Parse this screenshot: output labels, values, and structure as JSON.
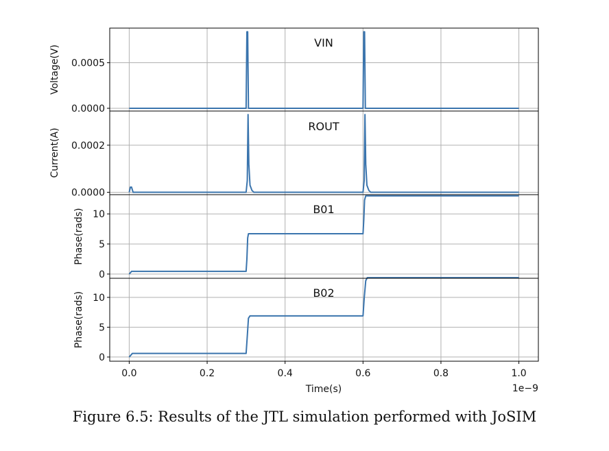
{
  "caption": "Figure 6.5: Results of the JTL simulation performed with JoSIM",
  "xlabel": "Time(s)",
  "x_offset_label": "1e−9",
  "x_ticks": [
    0.0,
    0.2,
    0.4,
    0.6,
    0.8,
    1.0
  ],
  "x_tick_labels": [
    "0.0",
    "0.2",
    "0.4",
    "0.6",
    "0.8",
    "1.0"
  ],
  "xlim": [
    -0.05,
    1.05
  ],
  "line_color": "#3a74ad",
  "chart_data": [
    {
      "type": "line",
      "title": "VIN",
      "ylabel": "Voltage(V)",
      "ylim": [
        -3e-05,
        0.00088
      ],
      "y_ticks": [
        0.0,
        0.0005
      ],
      "y_tick_labels": [
        "0.0000",
        "0.0005"
      ],
      "grid": true,
      "x": [
        0.0,
        0.3,
        0.302,
        0.304,
        0.306,
        0.6,
        0.602,
        0.604,
        0.606,
        1.0
      ],
      "y": [
        0.0,
        0.0,
        0.00084,
        0.00084,
        0.0,
        0.0,
        0.00084,
        0.00084,
        0.0,
        0.0
      ]
    },
    {
      "type": "line",
      "title": "ROUT",
      "ylabel": "Current(A)",
      "ylim": [
        -1e-05,
        0.000345
      ],
      "y_ticks": [
        0.0,
        0.0002
      ],
      "y_tick_labels": [
        "0.0000",
        "0.0002"
      ],
      "grid": true,
      "x": [
        0.0,
        0.003,
        0.006,
        0.01,
        0.3,
        0.303,
        0.305,
        0.307,
        0.31,
        0.315,
        0.32,
        0.6,
        0.603,
        0.605,
        0.607,
        0.61,
        0.615,
        0.62,
        1.0
      ],
      "y": [
        0.0,
        2.2e-05,
        2.2e-05,
        0.0,
        0.0,
        5e-05,
        0.00033,
        0.00012,
        3e-05,
        8e-06,
        0.0,
        0.0,
        5e-05,
        0.00033,
        0.00012,
        3e-05,
        8e-06,
        0.0,
        0.0
      ]
    },
    {
      "type": "line",
      "title": "B01",
      "ylabel": "Phase(rads)",
      "ylim": [
        -0.7,
        13.2
      ],
      "y_ticks": [
        0,
        5,
        10
      ],
      "y_tick_labels": [
        "0",
        "5",
        "10"
      ],
      "grid": true,
      "x": [
        0.0,
        0.006,
        0.3,
        0.302,
        0.304,
        0.306,
        0.6,
        0.602,
        0.604,
        0.607,
        1.0
      ],
      "y": [
        0.0,
        0.45,
        0.45,
        2.5,
        6.0,
        6.7,
        6.7,
        9.0,
        12.3,
        13.0,
        13.0
      ]
    },
    {
      "type": "line",
      "title": "B02",
      "ylabel": "Phase(rads)",
      "ylim": [
        -0.7,
        13.2
      ],
      "y_ticks": [
        0,
        5,
        10
      ],
      "y_tick_labels": [
        "0",
        "5",
        "10"
      ],
      "grid": true,
      "x": [
        0.0,
        0.008,
        0.3,
        0.303,
        0.306,
        0.31,
        0.6,
        0.603,
        0.607,
        0.611,
        1.0
      ],
      "y": [
        0.0,
        0.6,
        0.6,
        3.5,
        6.5,
        6.9,
        6.9,
        9.8,
        12.8,
        13.3,
        13.3
      ]
    }
  ]
}
